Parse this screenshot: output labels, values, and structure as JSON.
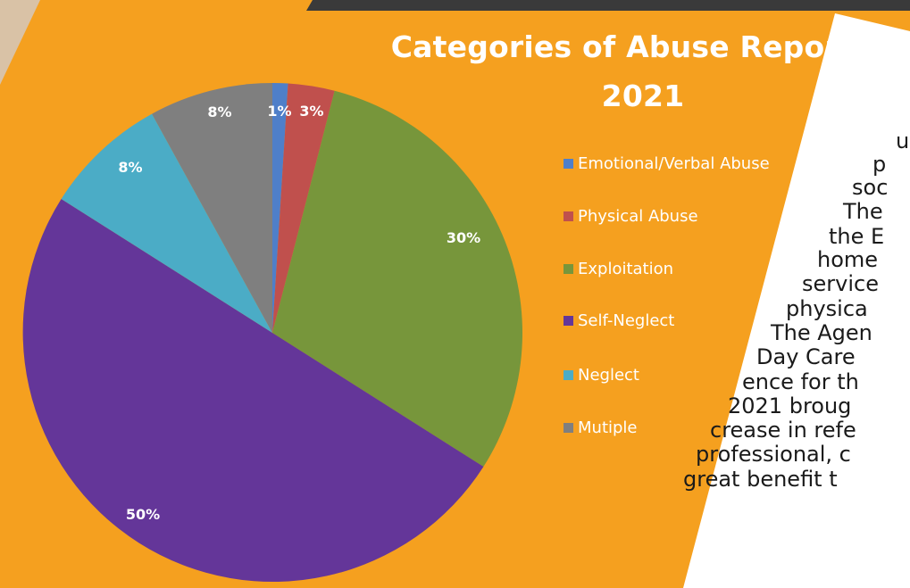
{
  "colors": {
    "background": "#f5a01f",
    "panel": "#ffffff",
    "top_bar": "#3a3a3a"
  },
  "chart_data": {
    "type": "pie",
    "title_lines": [
      "Categories of Abuse Reported",
      "2021"
    ],
    "legend_position": "right",
    "slices": [
      {
        "label": "Emotional/Verbal Abuse",
        "value": 1,
        "value_label": "1%",
        "color": "#4f7fc9"
      },
      {
        "label": "Physical Abuse",
        "value": 3,
        "value_label": "3%",
        "color": "#c0504d"
      },
      {
        "label": "Exploitation",
        "value": 30,
        "value_label": "30%",
        "color": "#77963b"
      },
      {
        "label": "Self-Neglect",
        "value": 50,
        "value_label": "50%",
        "color": "#643699"
      },
      {
        "label": "Neglect",
        "value": 8,
        "value_label": "8%",
        "color": "#4bacc6"
      },
      {
        "label": "Mutiple",
        "value": 8,
        "value_label": "8%",
        "color": "#7f7f7f"
      }
    ]
  },
  "body_text": {
    "lines": [
      "u",
      "p",
      "soc",
      "The",
      "the E",
      "home",
      "service",
      "physica",
      "The Agen",
      "Day Care",
      "ence for th",
      "2021 broug",
      "crease in refe",
      "professional, c",
      "great benefit t"
    ]
  }
}
